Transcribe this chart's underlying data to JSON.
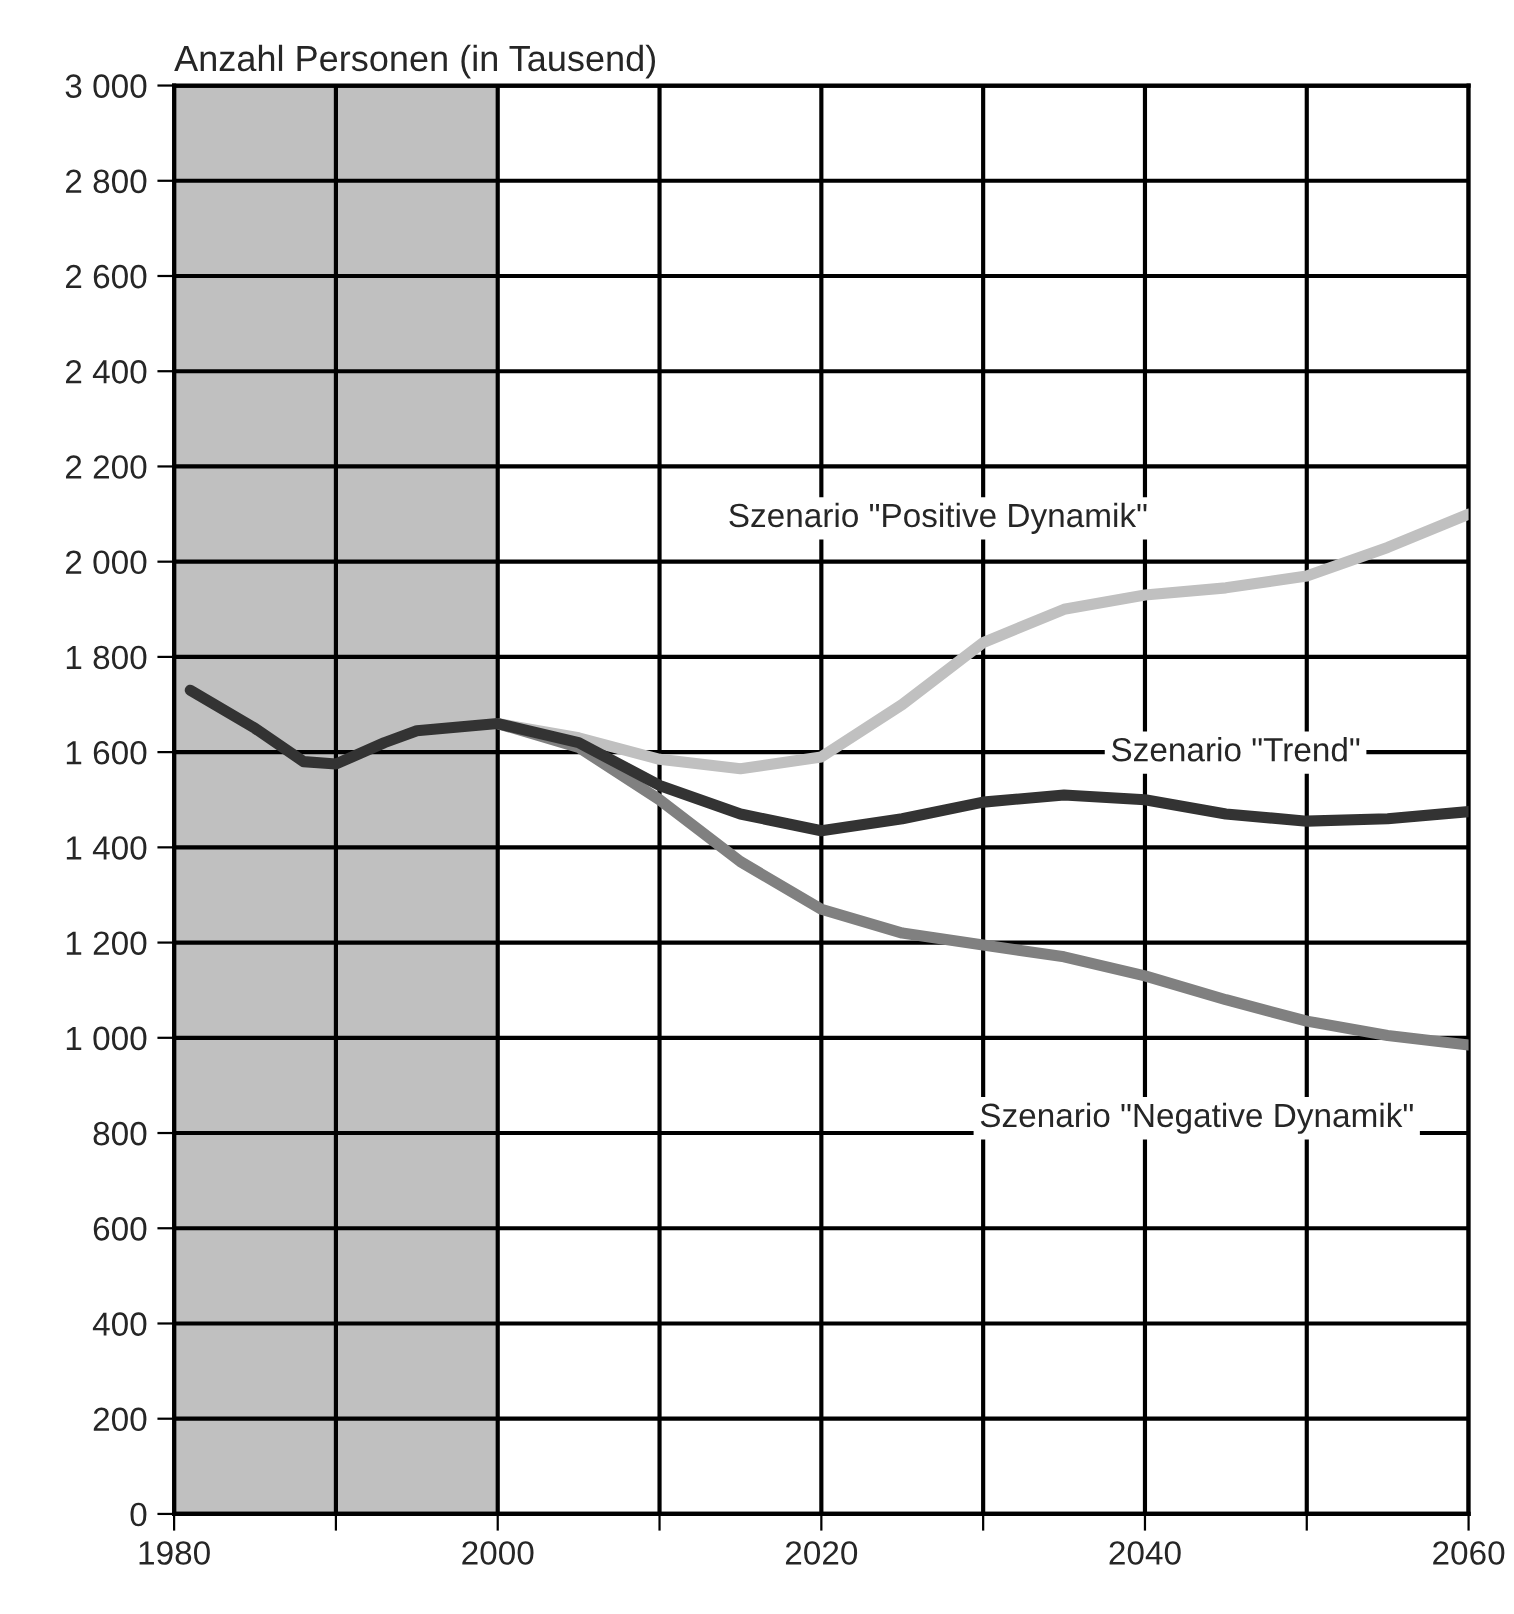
{
  "chart_data": {
    "type": "line",
    "ylabel": "Anzahl Personen (in Tausend)",
    "xlim": [
      1980,
      2060
    ],
    "ylim": [
      0,
      3000
    ],
    "xticks": [
      1980,
      {
        "value": 1990,
        "label": null
      },
      2000,
      {
        "value": 2010,
        "label": null
      },
      2020,
      {
        "value": 2030,
        "label": null
      },
      2040,
      {
        "value": 2050,
        "label": null
      },
      2060
    ],
    "yticks": [
      0,
      200,
      400,
      600,
      800,
      {
        "value": 1000,
        "label": "1 000"
      },
      {
        "value": 1200,
        "label": "1 200"
      },
      {
        "value": 1400,
        "label": "1 400"
      },
      {
        "value": 1600,
        "label": "1 600"
      },
      {
        "value": 1800,
        "label": "1 800"
      },
      {
        "value": 2000,
        "label": "2 000"
      },
      {
        "value": 2200,
        "label": "2 200"
      },
      {
        "value": 2400,
        "label": "2 400"
      },
      {
        "value": 2600,
        "label": "2 600"
      },
      {
        "value": 2800,
        "label": "2 800"
      },
      {
        "value": 3000,
        "label": "3 000"
      }
    ],
    "grid": true,
    "marker": "none",
    "line_style": "solid",
    "bands": [
      {
        "axis": "x",
        "from": 1980,
        "to": 2000,
        "color": "#c0c0c0"
      }
    ],
    "series": [
      {
        "name": "Szenario \"Positive Dynamik\"",
        "color": "#c0c0c0",
        "x": [
          2000,
          2005,
          2010,
          2015,
          2020,
          2025,
          2030,
          2035,
          2040,
          2045,
          2050,
          2055,
          2060
        ],
        "values": [
          1660,
          1630,
          1585,
          1565,
          1590,
          1700,
          1830,
          1900,
          1930,
          1945,
          1970,
          2030,
          2100
        ]
      },
      {
        "name": "Szenario \"Negative Dynamik\"",
        "color": "#808080",
        "x": [
          2000,
          2005,
          2010,
          2015,
          2020,
          2025,
          2030,
          2035,
          2040,
          2045,
          2050,
          2055,
          2060
        ],
        "values": [
          1660,
          1610,
          1500,
          1370,
          1270,
          1220,
          1195,
          1170,
          1130,
          1080,
          1035,
          1005,
          985
        ]
      },
      {
        "name": "Szenario \"Trend\"",
        "color": "#333333",
        "x": [
          1981,
          1985,
          1988,
          1990,
          1993,
          1995,
          2000,
          2005,
          2010,
          2015,
          2020,
          2025,
          2030,
          2035,
          2040,
          2045,
          2050,
          2055,
          2060
        ],
        "values": [
          1730,
          1650,
          1580,
          1575,
          1620,
          1645,
          1660,
          1620,
          1530,
          1470,
          1435,
          1460,
          1495,
          1510,
          1500,
          1470,
          1455,
          1460,
          1475
        ]
      }
    ]
  }
}
